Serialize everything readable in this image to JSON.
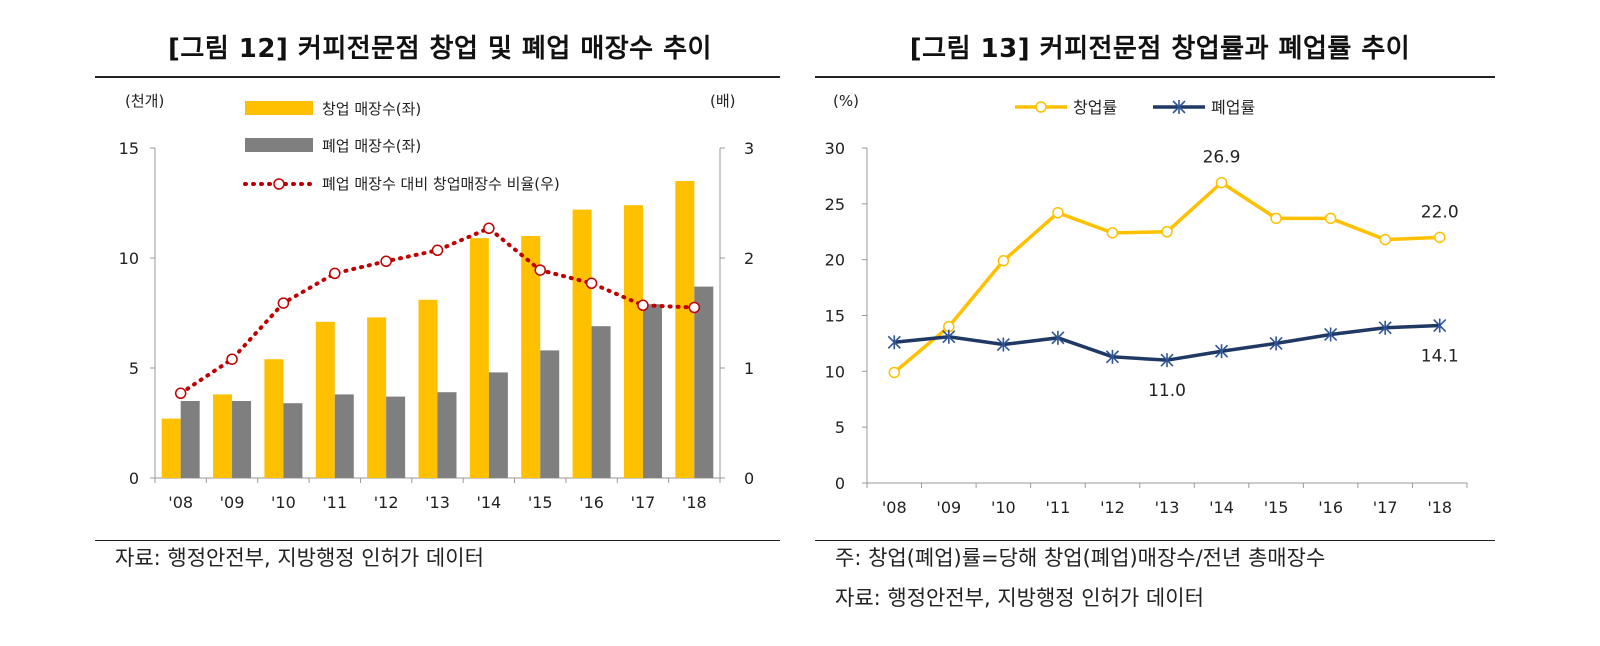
{
  "left": {
    "title": "[그림 12] 커피전문점 창업 및 폐업 매장수 추이",
    "source": "자료: 행정안전부, 지방행정 인허가 데이터",
    "chart_data": {
      "type": "bar",
      "categories": [
        "'08",
        "'09",
        "'10",
        "'11",
        "'12",
        "'13",
        "'14",
        "'15",
        "'16",
        "'17",
        "'18"
      ],
      "left_unit": "(천개)",
      "right_unit": "(배)",
      "y_left_lim": [
        0,
        15
      ],
      "y_left_ticks": [
        "0",
        "5",
        "10",
        "15"
      ],
      "y_right_lim": [
        0,
        3
      ],
      "y_right_ticks": [
        "0",
        "1",
        "2",
        "3"
      ],
      "legend_position": "top-left",
      "series": [
        {
          "name": "창업 매장수(좌)",
          "type": "bar",
          "axis": "left",
          "color": "#FFC000",
          "values": [
            2.7,
            3.8,
            5.4,
            7.1,
            7.3,
            8.1,
            10.9,
            11.0,
            12.2,
            12.4,
            13.5
          ]
        },
        {
          "name": "폐업 매장수(좌)",
          "type": "bar",
          "axis": "left",
          "color": "#7F7F7F",
          "values": [
            3.5,
            3.5,
            3.4,
            3.8,
            3.7,
            3.9,
            4.8,
            5.8,
            6.9,
            7.9,
            8.7
          ]
        },
        {
          "name": "폐업 매장수 대비 창업매장수 비율(우)",
          "type": "line",
          "axis": "right",
          "color": "#C00000",
          "values": [
            0.77,
            1.08,
            1.59,
            1.86,
            1.97,
            2.07,
            2.27,
            1.89,
            1.77,
            1.57,
            1.55
          ]
        }
      ]
    }
  },
  "right": {
    "title": "[그림 13] 커피전문점 창업률과 폐업률 추이",
    "note": "주: 창업(폐업)률=당해 창업(폐업)매장수/전년 총매장수",
    "source": "자료: 행정안전부, 지방행정 인허가 데이터",
    "chart_data": {
      "type": "line",
      "categories": [
        "'08",
        "'09",
        "'10",
        "'11",
        "'12",
        "'13",
        "'14",
        "'15",
        "'16",
        "'17",
        "'18"
      ],
      "unit": "(%)",
      "ylim": [
        0,
        30
      ],
      "y_ticks": [
        "0",
        "5",
        "10",
        "15",
        "20",
        "25",
        "30"
      ],
      "legend_position": "top-center",
      "series": [
        {
          "name": "창업률",
          "color": "#FFC000",
          "values": [
            9.9,
            14.0,
            19.9,
            24.2,
            22.4,
            22.5,
            26.9,
            23.7,
            23.7,
            21.8,
            22.0
          ]
        },
        {
          "name": "폐업률",
          "color": "#1F3864",
          "values": [
            12.6,
            13.1,
            12.4,
            13.0,
            11.3,
            11.0,
            11.8,
            12.5,
            13.3,
            13.9,
            14.1
          ]
        }
      ],
      "annotations": [
        {
          "series": 0,
          "index": 6,
          "text": "26.9",
          "place": "above"
        },
        {
          "series": 0,
          "index": 10,
          "text": "22.0",
          "place": "above"
        },
        {
          "series": 1,
          "index": 5,
          "text": "11.0",
          "place": "below"
        },
        {
          "series": 1,
          "index": 10,
          "text": "14.1",
          "place": "below"
        }
      ]
    }
  }
}
